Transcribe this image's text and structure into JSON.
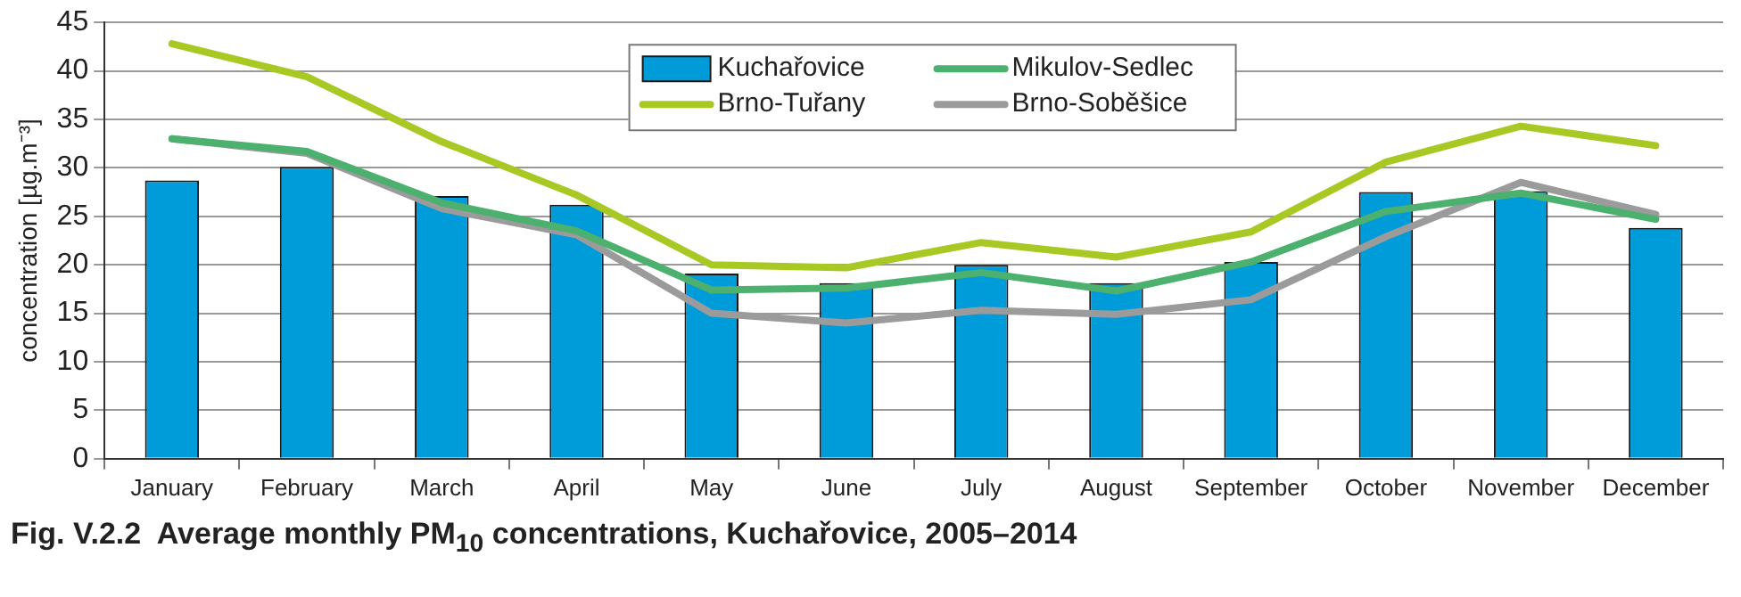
{
  "chart_data": {
    "type": "bar",
    "title": "Fig. V.2.2  Average monthly PM$_{10}$ concentrations, Kuchařovice, 2005–2014",
    "ylabel": "concentration [µg.m⁻³]",
    "categories": [
      "January",
      "February",
      "March",
      "April",
      "May",
      "June",
      "July",
      "August",
      "September",
      "October",
      "November",
      "December"
    ],
    "series": [
      {
        "name": "Kuchařovice",
        "color": "#009bd9",
        "values": [
          28.7,
          30.1,
          27.1,
          26.2,
          19.1,
          18.1,
          20.0,
          18.1,
          20.3,
          27.5,
          27.6,
          23.8
        ]
      },
      {
        "name": "Mikulov-Sedlec",
        "type": "line",
        "color": "#4cb06e",
        "values": [
          33.0,
          31.7,
          26.4,
          23.5,
          17.4,
          17.6,
          19.2,
          17.3,
          20.3,
          25.5,
          27.4,
          24.7
        ]
      },
      {
        "name": "Brno-Tuřany",
        "type": "line",
        "color": "#a8c824",
        "values": [
          42.8,
          39.4,
          32.7,
          27.2,
          20.0,
          19.7,
          22.3,
          20.8,
          23.4,
          30.6,
          34.3,
          32.3
        ]
      },
      {
        "name": "Brno-Soběšice",
        "type": "line",
        "color": "#9b9b9b",
        "values": [
          33.0,
          31.5,
          25.8,
          23.1,
          15.0,
          14.0,
          15.3,
          14.9,
          16.4,
          22.9,
          28.5,
          25.2
        ]
      }
    ],
    "ylim": [
      0,
      45
    ],
    "yticks": [
      0,
      5,
      10,
      15,
      20,
      25,
      30,
      35,
      40,
      45
    ],
    "grid": "y",
    "legend": "top",
    "marker": "none",
    "line_style": "solid"
  }
}
